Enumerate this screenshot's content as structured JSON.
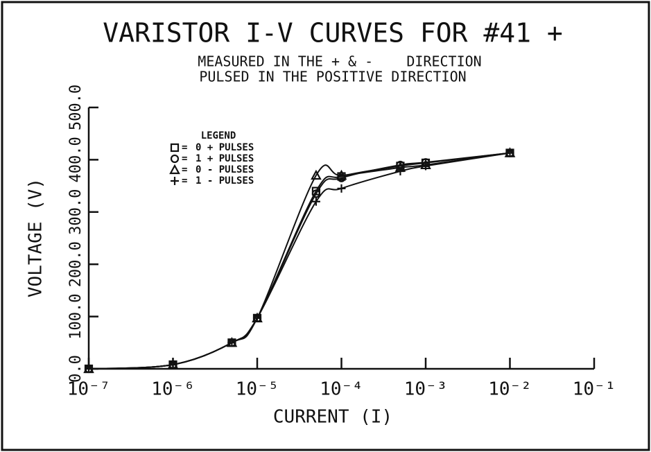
{
  "chart_data": {
    "type": "line",
    "title": "VARISTOR I-V CURVES FOR #41 +",
    "subtitle": [
      "MEASURED IN THE + & -    DIRECTION",
      "PULSED IN THE POSITIVE DIRECTION"
    ],
    "x_label": "CURRENT (I)",
    "y_label": "VOLTAGE (V)",
    "x_scale": "log",
    "x": [
      1e-07,
      1e-06,
      5e-06,
      1e-05,
      5e-05,
      0.0001,
      0.0005,
      0.001,
      0.01
    ],
    "series": [
      {
        "name": "0 + PULSES",
        "marker": "square",
        "color": "#111111",
        "values": [
          0,
          8,
          50,
          97,
          340,
          368,
          388,
          394,
          413
        ]
      },
      {
        "name": "1 + PULSES",
        "marker": "circle",
        "color": "#111111",
        "values": [
          0,
          8,
          50,
          97,
          335,
          365,
          390,
          395,
          413
        ]
      },
      {
        "name": "0 - PULSES",
        "marker": "triangle",
        "color": "#111111",
        "values": [
          0,
          8,
          50,
          97,
          370,
          370,
          385,
          390,
          413
        ]
      },
      {
        "name": "1 - PULSES",
        "marker": "plus",
        "color": "#111111",
        "values": [
          0,
          8,
          50,
          97,
          320,
          345,
          378,
          388,
          413
        ]
      }
    ],
    "legend_title": "LEGEND",
    "xlim": [
      1e-07,
      0.1
    ],
    "xticks": [
      {
        "value": 1e-07,
        "label": "10⁻⁷"
      },
      {
        "value": 1e-06,
        "label": "10⁻⁶"
      },
      {
        "value": 1e-05,
        "label": "10⁻⁵"
      },
      {
        "value": 0.0001,
        "label": "10⁻⁴"
      },
      {
        "value": 0.001,
        "label": "10⁻³"
      },
      {
        "value": 0.01,
        "label": "10⁻²"
      },
      {
        "value": 0.1,
        "label": "10⁻¹"
      }
    ],
    "ylim": [
      0,
      500
    ],
    "yticks": [
      {
        "value": 0,
        "label": "0.0"
      },
      {
        "value": 100,
        "label": "100.0"
      },
      {
        "value": 200,
        "label": "200.0"
      },
      {
        "value": 300,
        "label": "300.0"
      },
      {
        "value": 400,
        "label": "400.0"
      },
      {
        "value": 500,
        "label": "500.0"
      }
    ]
  }
}
